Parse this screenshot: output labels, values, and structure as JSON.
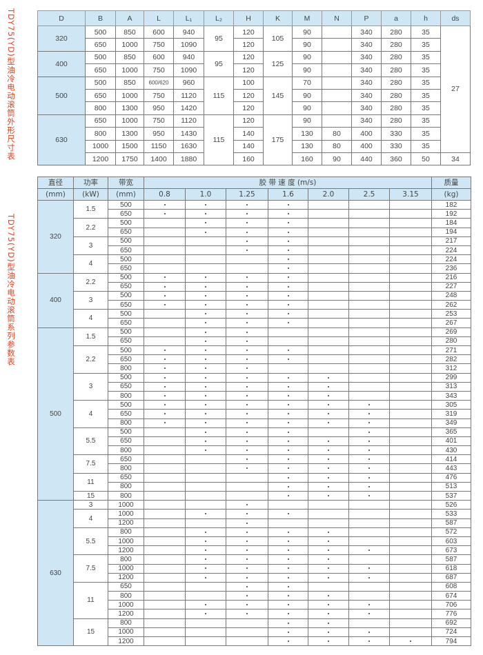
{
  "side_titles": {
    "dimensions": "TDY75(YD)型油冷电动滚筒外形尺寸表",
    "parameters": "TDY75(YD)型油冷电动滚筒系列参数表"
  },
  "colors": {
    "header_bg": "#cfe6f5",
    "title_red": "#e8401c"
  },
  "dimensions_table": {
    "headers": [
      "D",
      "B",
      "A",
      "L",
      "L₁",
      "L₂",
      "H",
      "K",
      "M",
      "N",
      "P",
      "a",
      "h",
      "ds"
    ],
    "groups": [
      {
        "D": "320",
        "L2": "95",
        "K": "105",
        "rows": [
          [
            "500",
            "850",
            "600",
            "940",
            "120",
            "90",
            "",
            "340",
            "280",
            "35"
          ],
          [
            "650",
            "1000",
            "750",
            "1090",
            "120",
            "90",
            "",
            "340",
            "280",
            "35"
          ]
        ]
      },
      {
        "D": "400",
        "L2": "95",
        "K": "125",
        "rows": [
          [
            "500",
            "850",
            "600",
            "940",
            "120",
            "90",
            "",
            "340",
            "280",
            "35"
          ],
          [
            "650",
            "1000",
            "750",
            "1090",
            "120",
            "90",
            "",
            "340",
            "280",
            "35"
          ]
        ]
      },
      {
        "D": "500",
        "L2": "115",
        "K": "145",
        "rows": [
          [
            "500",
            "850",
            "600/620",
            "960",
            "100",
            "70",
            "",
            "340",
            "280",
            "35"
          ],
          [
            "650",
            "1000",
            "750",
            "1120",
            "120",
            "90",
            "",
            "340",
            "280",
            "35"
          ],
          [
            "800",
            "1300",
            "950",
            "1420",
            "120",
            "90",
            "",
            "340",
            "280",
            "35"
          ]
        ]
      },
      {
        "D": "630",
        "L2": "115",
        "K": "175",
        "rows": [
          [
            "650",
            "1000",
            "750",
            "1120",
            "120",
            "90",
            "",
            "340",
            "280",
            "35"
          ],
          [
            "800",
            "1300",
            "950",
            "1430",
            "140",
            "130",
            "80",
            "400",
            "330",
            "35"
          ],
          [
            "1000",
            "1500",
            "1150",
            "1630",
            "140",
            "130",
            "80",
            "400",
            "330",
            "35"
          ],
          [
            "1200",
            "1750",
            "1400",
            "1880",
            "160",
            "160",
            "90",
            "440",
            "360",
            "50"
          ]
        ]
      }
    ],
    "ds": [
      {
        "value": "27",
        "rows": 10
      },
      {
        "value": "34",
        "rows": 1
      }
    ]
  },
  "parameters_table": {
    "headers": {
      "diameter": "直径",
      "diameter_unit": "(mm)",
      "power": "功率",
      "power_unit": "(kW)",
      "width": "带宽",
      "width_unit": "(mm)",
      "speed": "胶 带 速 度 (m/s)",
      "mass": "质量",
      "mass_unit": "(kg)"
    },
    "speeds": [
      "0.8",
      "1.0",
      "1.25",
      "1.6",
      "2.0",
      "2.5",
      "3.15"
    ],
    "groups": [
      {
        "D": "320",
        "powers": [
          {
            "kW": "1.5",
            "rows": [
              [
                "500",
                "1111000",
                "182"
              ],
              [
                "650",
                "1111000",
                "192"
              ]
            ]
          },
          {
            "kW": "2.2",
            "rows": [
              [
                "500",
                "0111000",
                "184"
              ],
              [
                "650",
                "0111000",
                "194"
              ]
            ]
          },
          {
            "kW": "3",
            "rows": [
              [
                "500",
                "0011000",
                "217"
              ],
              [
                "650",
                "0011000",
                "224"
              ]
            ]
          },
          {
            "kW": "4",
            "rows": [
              [
                "500",
                "0001000",
                "224"
              ],
              [
                "650",
                "0001000",
                "236"
              ]
            ]
          }
        ]
      },
      {
        "D": "400",
        "powers": [
          {
            "kW": "2.2",
            "rows": [
              [
                "500",
                "1111000",
                "216"
              ],
              [
                "650",
                "1111000",
                "227"
              ]
            ]
          },
          {
            "kW": "3",
            "rows": [
              [
                "500",
                "1111000",
                "248"
              ],
              [
                "650",
                "1111000",
                "262"
              ]
            ]
          },
          {
            "kW": "4",
            "rows": [
              [
                "500",
                "0111000",
                "253"
              ],
              [
                "650",
                "0111000",
                "267"
              ]
            ]
          }
        ]
      },
      {
        "D": "500",
        "powers": [
          {
            "kW": "1.5",
            "rows": [
              [
                "500",
                "0110000",
                "269"
              ],
              [
                "650",
                "0110000",
                "280"
              ]
            ]
          },
          {
            "kW": "2.2",
            "rows": [
              [
                "500",
                "1111000",
                "271"
              ],
              [
                "650",
                "1111000",
                "282"
              ],
              [
                "800",
                "1110000",
                "312"
              ]
            ]
          },
          {
            "kW": "3",
            "rows": [
              [
                "500",
                "1111100",
                "299"
              ],
              [
                "650",
                "1111100",
                "313"
              ],
              [
                "800",
                "1111100",
                "343"
              ]
            ]
          },
          {
            "kW": "4",
            "rows": [
              [
                "500",
                "1111110",
                "305"
              ],
              [
                "650",
                "1111110",
                "319"
              ],
              [
                "800",
                "1111110",
                "349"
              ]
            ]
          },
          {
            "kW": "5.5",
            "rows": [
              [
                "500",
                "0111010",
                "365"
              ],
              [
                "650",
                "0111110",
                "401"
              ],
              [
                "800",
                "0111110",
                "430"
              ]
            ]
          },
          {
            "kW": "7.5",
            "rows": [
              [
                "650",
                "0011110",
                "414"
              ],
              [
                "800",
                "0011110",
                "443"
              ]
            ]
          },
          {
            "kW": "11",
            "rows": [
              [
                "650",
                "0001110",
                "476"
              ],
              [
                "800",
                "0001110",
                "513"
              ]
            ]
          },
          {
            "kW": "15",
            "rows": [
              [
                "800",
                "0001110",
                "537"
              ]
            ]
          }
        ]
      },
      {
        "D": "630",
        "powers": [
          {
            "kW": "3",
            "rows": [
              [
                "1000",
                "0010000",
                "526"
              ]
            ]
          },
          {
            "kW": "4",
            "rows": [
              [
                "1000",
                "0111000",
                "533"
              ],
              [
                "1200",
                "0010000",
                "587"
              ]
            ]
          },
          {
            "kW": "5.5",
            "rows": [
              [
                "800",
                "0111100",
                "572"
              ],
              [
                "1000",
                "0111100",
                "603"
              ],
              [
                "1200",
                "0111110",
                "673"
              ]
            ]
          },
          {
            "kW": "7.5",
            "rows": [
              [
                "800",
                "0111100",
                "587"
              ],
              [
                "1000",
                "0111110",
                "618"
              ],
              [
                "1200",
                "0111110",
                "687"
              ]
            ]
          },
          {
            "kW": "11",
            "rows": [
              [
                "650",
                "0011000",
                "608"
              ],
              [
                "800",
                "0011100",
                "674"
              ],
              [
                "1000",
                "0111110",
                "706"
              ],
              [
                "1200",
                "0111110",
                "776"
              ]
            ]
          },
          {
            "kW": "15",
            "rows": [
              [
                "800",
                "0001100",
                "692"
              ],
              [
                "1000",
                "0001110",
                "724"
              ],
              [
                "1200",
                "0001111",
                "794"
              ]
            ]
          }
        ]
      }
    ]
  }
}
